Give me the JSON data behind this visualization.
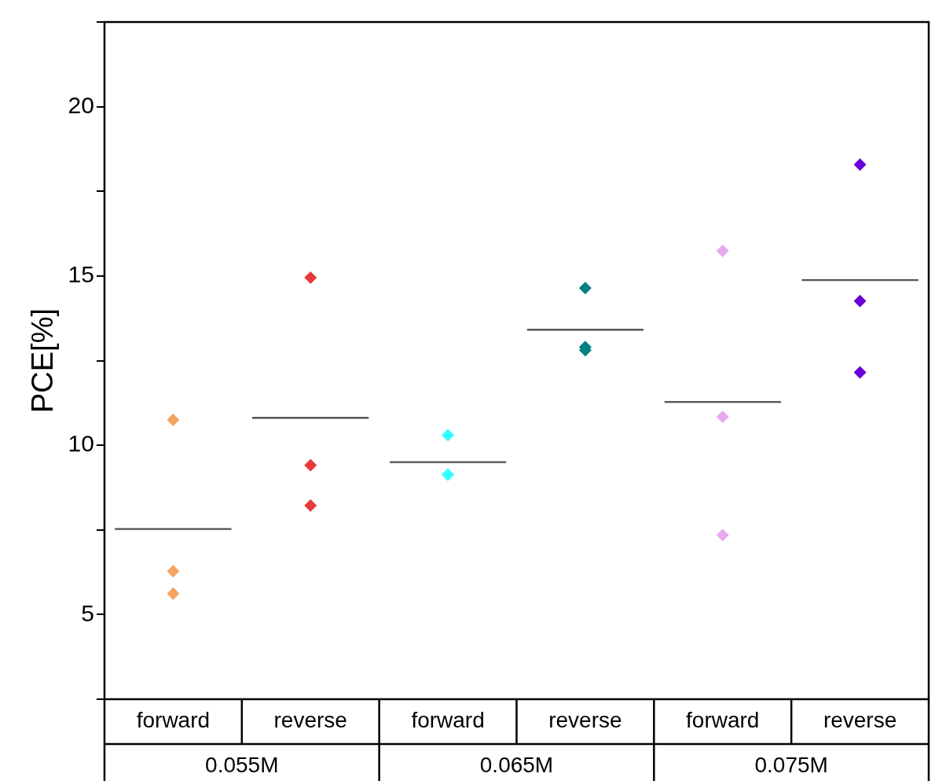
{
  "chart_data": {
    "type": "scatter",
    "ylabel": "PCE[%]",
    "categories": [
      "forward",
      "reverse",
      "forward",
      "reverse",
      "forward",
      "reverse"
    ],
    "series": [
      {
        "colors": [
          "#f4a460",
          "#e83a3a",
          "#33ffff",
          "#008080",
          "#e8a8f0",
          "#6a00d8"
        ],
        "values": [
          10.75,
          14.95,
          10.3,
          14.64,
          15.74,
          18.29
        ]
      },
      {
        "colors": [
          "#f4a460",
          "#e83a3a",
          "#33ffff",
          "#008080",
          "#e8a8f0",
          "#6a00d8"
        ],
        "values": [
          6.28,
          9.41,
          9.13,
          12.81,
          10.84,
          14.26
        ]
      },
      {
        "colors": [
          "#f4a460",
          "#e83a3a",
          "#33ffff",
          "#008080",
          "#e8a8f0",
          "#6a00d8"
        ],
        "values": [
          5.62,
          8.22,
          9.13,
          12.9,
          7.35,
          12.15
        ]
      },
      {
        "type": "bar",
        "color": "#555555",
        "values": [
          7.56,
          10.84,
          9.53,
          13.44,
          11.31,
          14.91
        ]
      }
    ],
    "annotations": [
      "0.055M",
      "0.065M",
      "0.075M"
    ],
    "ylim": [
      2.5,
      22.5
    ],
    "yticks": [
      {
        "value": 2.5,
        "label": null
      },
      5,
      {
        "value": 7.5,
        "label": null
      },
      10,
      {
        "value": 12.5,
        "label": null
      },
      15,
      {
        "value": 17.5,
        "label": null
      },
      20,
      {
        "value": 22.5,
        "label": null
      }
    ],
    "marker": "diamond",
    "grid": false,
    "legend": false
  }
}
